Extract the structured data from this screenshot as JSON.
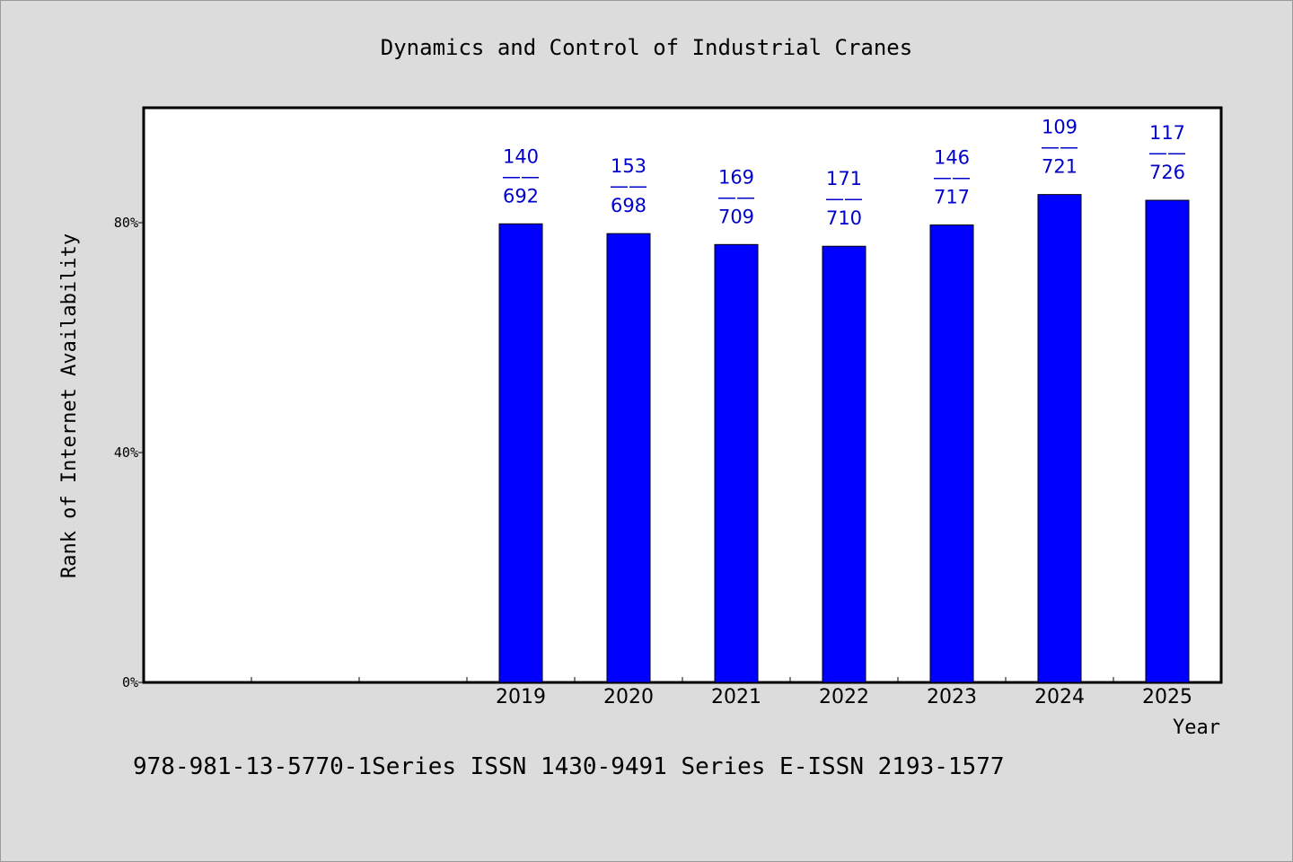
{
  "chart_data": {
    "type": "bar",
    "title": "Dynamics and Control of Industrial Cranes",
    "xlabel": "Year",
    "ylabel": "Rank of Internet Availability",
    "categories": [
      "",
      "",
      "",
      "2019",
      "2020",
      "2021",
      "2022",
      "2023",
      "2024",
      "2025"
    ],
    "values": [
      null,
      null,
      null,
      0.798,
      0.781,
      0.762,
      0.759,
      0.796,
      0.849,
      0.839
    ],
    "bar_labels": [
      null,
      null,
      null,
      {
        "top": "140",
        "sep": "——",
        "bottom": "692"
      },
      {
        "top": "153",
        "sep": "——",
        "bottom": "698"
      },
      {
        "top": "169",
        "sep": "——",
        "bottom": "709"
      },
      {
        "top": "171",
        "sep": "——",
        "bottom": "710"
      },
      {
        "top": "146",
        "sep": "——",
        "bottom": "717"
      },
      {
        "top": "109",
        "sep": "——",
        "bottom": "721"
      },
      {
        "top": "117",
        "sep": "——",
        "bottom": "726"
      }
    ],
    "yticks": [
      {
        "value": 0,
        "label": "0%"
      },
      {
        "value": 0.4,
        "label": "40%"
      },
      {
        "value": 0.8,
        "label": "80%"
      }
    ],
    "ylim": [
      0,
      1.0
    ],
    "grid": false,
    "colors": {
      "bar": "#0000ff",
      "label": "#0000cc",
      "axis": "#000000",
      "background": "#dcdcdc",
      "plot": "#ffffff"
    }
  },
  "footer": {
    "text": "978-981-13-5770-1Series ISSN 1430-9491 Series E-ISSN 2193-1577"
  }
}
